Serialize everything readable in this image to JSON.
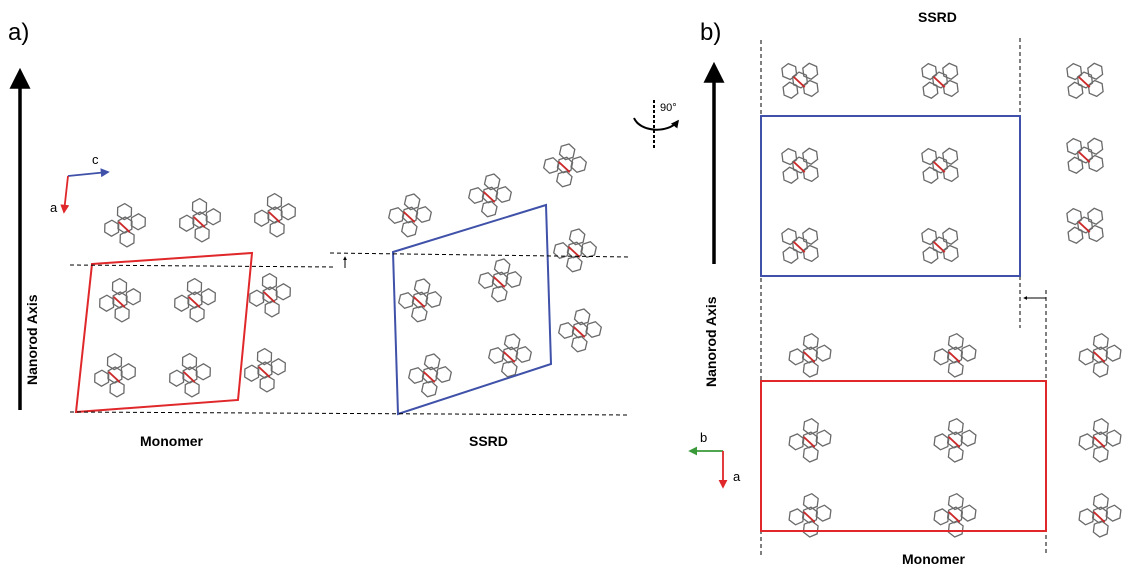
{
  "panel_a": {
    "label": "a)",
    "axis_label": "Nanorod Axis",
    "axes": {
      "c": "c",
      "a": "a"
    },
    "monomer_label": "Monomer",
    "ssrd_label": "SSRD"
  },
  "panel_b": {
    "label": "b)",
    "axis_label": "Nanorod Axis",
    "rotation_label": "90°",
    "ssrd_label": "SSRD",
    "monomer_label": "Monomer",
    "axes": {
      "b": "b",
      "a": "a"
    }
  },
  "colors": {
    "monomer_cell": "#e0272a",
    "ssrd_cell": "#3f51a8",
    "axis_red": "#e0272a",
    "axis_blue": "#3f51a8",
    "axis_green": "#3a9a3a",
    "molecule": "#6a6a6a",
    "oxygen": "#cc2a2a"
  }
}
